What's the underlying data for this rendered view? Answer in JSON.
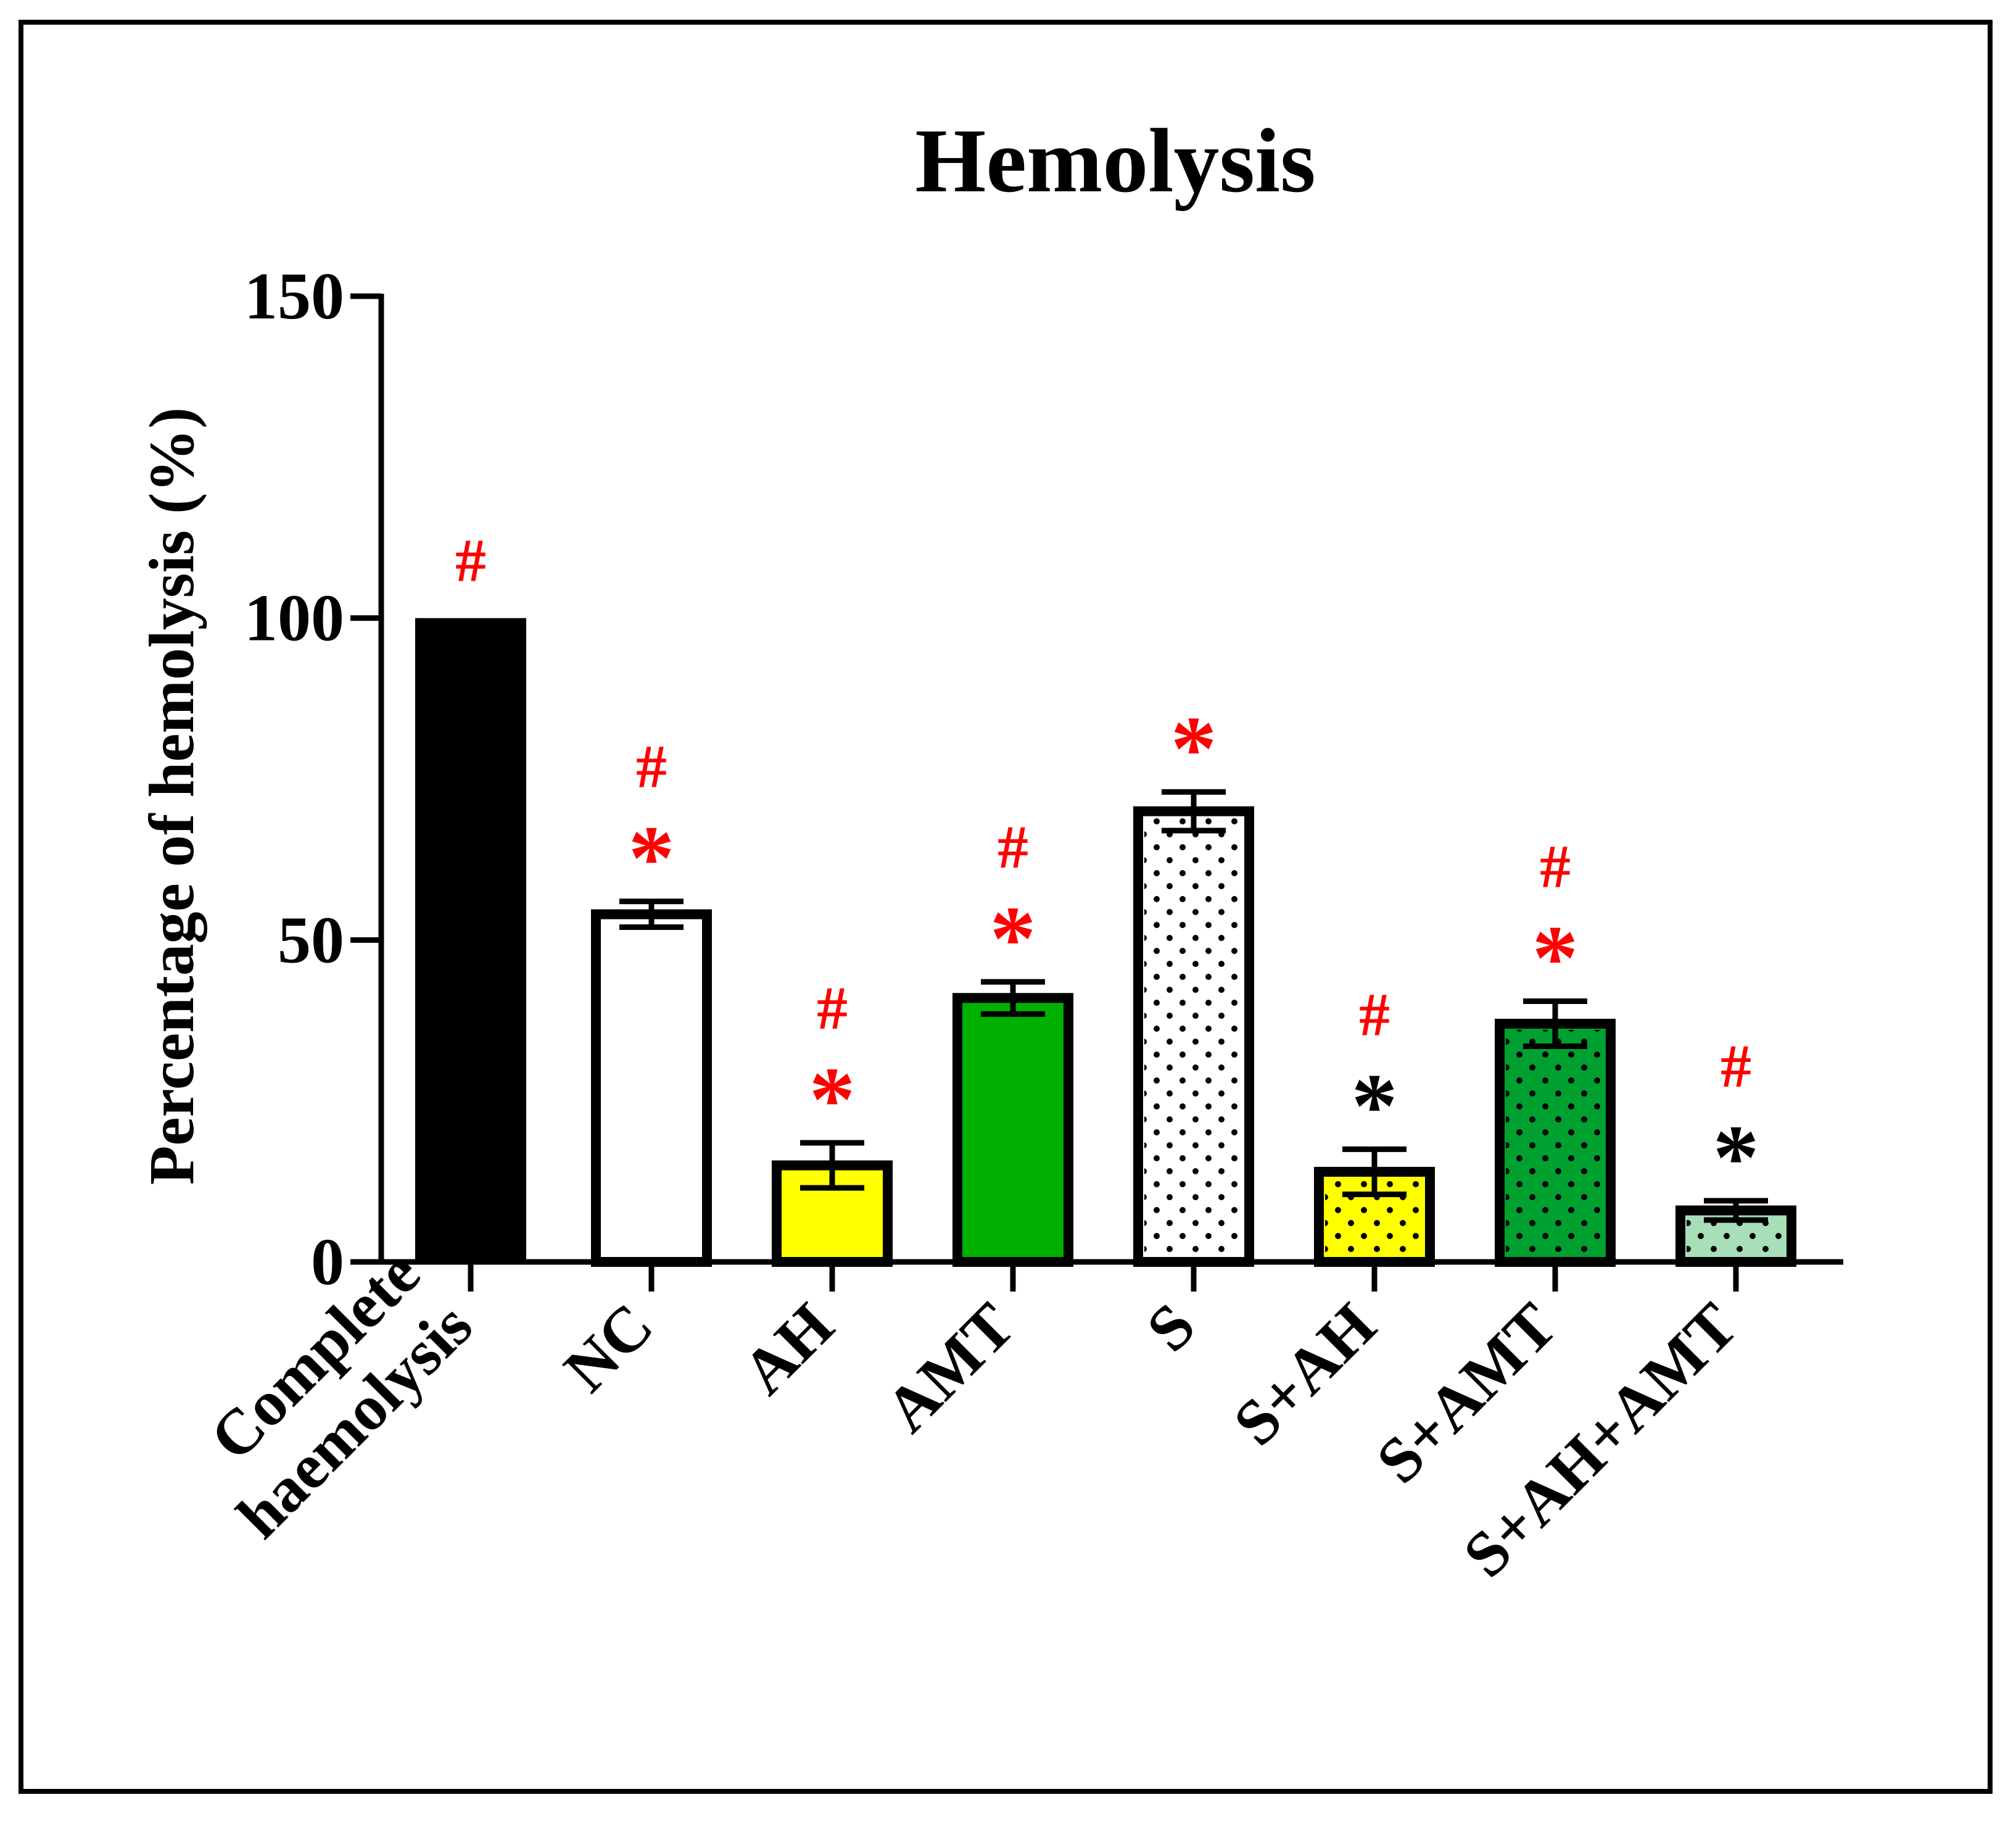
{
  "chart_data": {
    "type": "bar",
    "title": "Hemolysis",
    "xlabel": "",
    "ylabel": "Percentage of hemolysis (%)",
    "ylim": [
      0,
      150
    ],
    "yticks": [
      "0",
      "50",
      "100",
      "150"
    ],
    "grid": false,
    "categories": [
      [
        "Complete",
        "haemolysis"
      ],
      [
        "NC"
      ],
      [
        "AH"
      ],
      [
        "AMT"
      ],
      [
        "S"
      ],
      [
        "S+AH"
      ],
      [
        "S+AMT"
      ],
      [
        "S+AH+AMT"
      ]
    ],
    "values": [
      100,
      54,
      15,
      41,
      70,
      14,
      37,
      8
    ],
    "errors": [
      0,
      2,
      3.5,
      2.5,
      3,
      3.5,
      3.5,
      1.5
    ],
    "fills": [
      "#000000",
      "#ffffff",
      "#ffff00",
      "#00b000",
      "#ffffff",
      "#ffff00",
      "#00a030",
      "#a8dfb8"
    ],
    "dotted": [
      false,
      false,
      false,
      false,
      true,
      true,
      true,
      true
    ],
    "annotations": [
      [
        {
          "text": "#",
          "color": "#ff0000"
        }
      ],
      [
        {
          "text": "*",
          "color": "#ff0000"
        },
        {
          "text": "#",
          "color": "#ff0000"
        }
      ],
      [
        {
          "text": "*",
          "color": "#ff0000"
        },
        {
          "text": "#",
          "color": "#ff0000"
        }
      ],
      [
        {
          "text": "*",
          "color": "#ff0000"
        },
        {
          "text": "#",
          "color": "#ff0000"
        }
      ],
      [
        {
          "text": "*",
          "color": "#ff0000"
        }
      ],
      [
        {
          "text": "*",
          "color": "#000000"
        },
        {
          "text": "#",
          "color": "#ff0000"
        }
      ],
      [
        {
          "text": "*",
          "color": "#ff0000"
        },
        {
          "text": "#",
          "color": "#ff0000"
        }
      ],
      [
        {
          "text": "*",
          "color": "#000000"
        },
        {
          "text": "#",
          "color": "#ff0000"
        }
      ]
    ]
  }
}
